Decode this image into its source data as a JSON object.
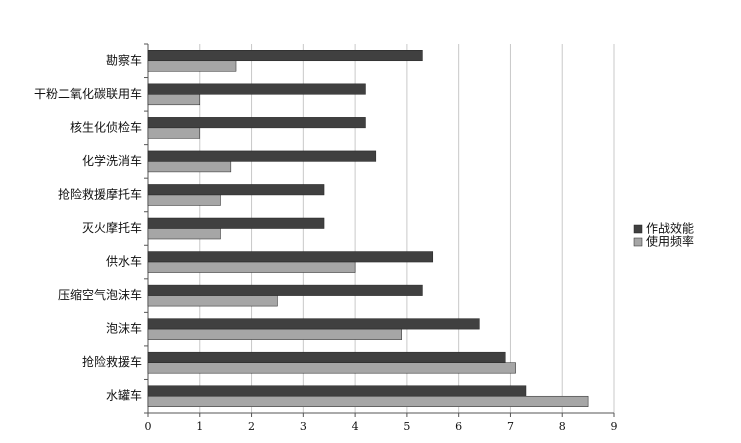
{
  "chart_data": {
    "type": "bar",
    "orientation": "horizontal",
    "categories": [
      "勘察车",
      "干粉二氧化碳联用车",
      "核生化侦检车",
      "化学洗消车",
      "抢险救援摩托车",
      "灭火摩托车",
      "供水车",
      "压缩空气泡沫车",
      "泡沫车",
      "抢险救援车",
      "水罐车"
    ],
    "series": [
      {
        "name": "作战效能",
        "color": "#404040",
        "values": [
          5.3,
          4.2,
          4.2,
          4.4,
          3.4,
          3.4,
          5.5,
          5.3,
          6.4,
          6.9,
          7.3
        ]
      },
      {
        "name": "使用频率",
        "color": "#a6a6a6",
        "values": [
          1.7,
          1.0,
          1.0,
          1.6,
          1.4,
          1.4,
          4.0,
          2.5,
          4.9,
          7.1,
          8.5
        ]
      }
    ],
    "xlim": [
      0,
      9
    ],
    "xticks": [
      0,
      1,
      2,
      3,
      4,
      5,
      6,
      7,
      8,
      9
    ],
    "grid": true,
    "legend": "right"
  }
}
